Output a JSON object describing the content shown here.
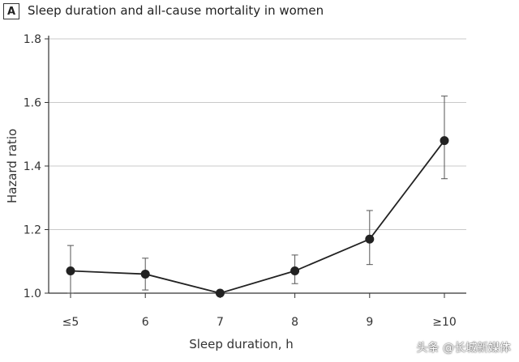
{
  "panel_label": "A",
  "watermark": "头条 @长城新媒体",
  "chart_data": {
    "type": "line",
    "title": "Sleep duration and all-cause mortality in women",
    "xlabel": "Sleep duration, h",
    "ylabel": "Hazard ratio",
    "categories": [
      "≤5",
      "6",
      "7",
      "8",
      "9",
      "≥10"
    ],
    "ylim": [
      1.0,
      1.8
    ],
    "yticks": [
      1.0,
      1.2,
      1.4,
      1.6,
      1.8
    ],
    "ytick_labels": [
      "1.0",
      "1.2",
      "1.4",
      "1.6",
      "1.8"
    ],
    "grid": true,
    "series": [
      {
        "values": [
          1.07,
          1.06,
          1.0,
          1.07,
          1.17,
          1.48
        ],
        "ci_lower": [
          1.0,
          1.01,
          1.0,
          1.03,
          1.09,
          1.36
        ],
        "ci_upper": [
          1.15,
          1.11,
          1.0,
          1.12,
          1.26,
          1.62
        ],
        "color": "#222222"
      }
    ]
  }
}
